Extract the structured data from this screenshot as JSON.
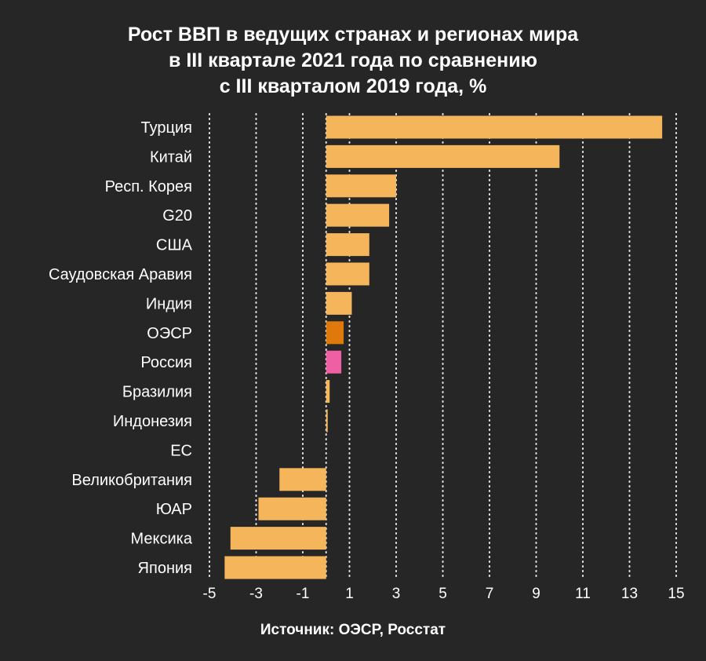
{
  "title_lines": [
    "Рост ВВП в ведущих странах и регионах мира",
    "в III квартале 2021 года по сравнению",
    "с III кварталом 2019 года, %"
  ],
  "source": "Источник: ОЭСР, Росстат",
  "colors": {
    "background": "#262626",
    "bar": "#f4b55b",
    "oecd": "#e0790b",
    "russia": "#ee5fa3",
    "grid": "#ffffff",
    "text": "#ffffff"
  },
  "chart_data": {
    "type": "bar",
    "orientation": "horizontal",
    "title": "Рост ВВП в ведущих странах и регионах мира в III квартале 2021 года по сравнению с III кварталом 2019 года, %",
    "xlabel": "",
    "ylabel": "",
    "xlim": [
      -5,
      15
    ],
    "xticks": [
      -5,
      -3,
      -1,
      1,
      3,
      5,
      7,
      9,
      11,
      13,
      15
    ],
    "grid": true,
    "categories": [
      "Турция",
      "Китай",
      "Респ. Корея",
      "G20",
      "США",
      "Саудовская Аравия",
      "Индия",
      "ОЭСР",
      "Россия",
      "Бразилия",
      "Индонезия",
      "ЕС",
      "Великобритания",
      "ЮАР",
      "Мексика",
      "Япония"
    ],
    "values": [
      14.4,
      10.0,
      3.0,
      2.7,
      1.85,
      1.85,
      1.1,
      0.75,
      0.65,
      0.15,
      0.05,
      0.0,
      -2.0,
      -2.9,
      -4.1,
      -4.35
    ],
    "highlight": {
      "ОЭСР": "oecd",
      "Россия": "russia"
    }
  }
}
